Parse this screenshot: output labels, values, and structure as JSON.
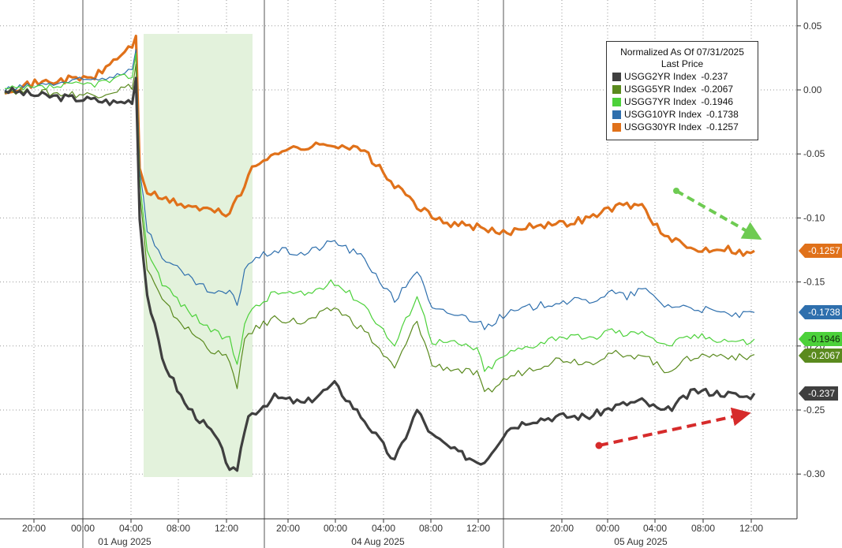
{
  "chart_data": {
    "type": "line",
    "title": "Normalized As Of 07/31/2025",
    "subtitle": "Last Price",
    "ylim": [
      -0.34,
      0.055
    ],
    "y_ticks": [
      "0.05",
      "0.00",
      "-0.05",
      "-0.10",
      "-0.15",
      "-0.20",
      "-0.25",
      "-0.30"
    ],
    "x_ticks": [
      "20:00",
      "00:00",
      "04:00",
      "08:00",
      "12:00",
      "20:00",
      "00:00",
      "04:00",
      "08:00",
      "12:00",
      "20:00",
      "00:00",
      "04:00",
      "08:00",
      "12:00"
    ],
    "date_labels": [
      "01 Aug 2025",
      "04 Aug 2025",
      "05 Aug 2025"
    ],
    "grid": true,
    "legend_placement": "top-right",
    "shaded_region": "01 Aug 2025 05:00 to 14:00",
    "annotations": [
      {
        "type": "arrow",
        "color": "#6ecb52",
        "direction": "down-right",
        "style": "dashed"
      },
      {
        "type": "arrow",
        "color": "#d62b2b",
        "direction": "up-right",
        "style": "dashed"
      }
    ],
    "x_index": [
      0,
      8,
      16,
      24,
      30,
      34,
      35,
      36,
      38,
      42,
      48,
      56,
      60,
      62,
      64,
      65,
      72,
      80,
      88,
      96,
      104,
      110,
      114,
      120,
      126,
      128,
      134,
      140,
      148,
      156,
      162,
      166,
      170,
      176,
      184,
      192,
      198,
      200
    ],
    "series": [
      {
        "name": "USGG2YR Index",
        "last": "-0.237",
        "color": "#3f3f3f",
        "values": [
          0.0,
          -0.004,
          -0.006,
          -0.008,
          -0.01,
          -0.008,
          0.01,
          -0.1,
          -0.16,
          -0.21,
          -0.245,
          -0.27,
          -0.295,
          -0.3,
          -0.265,
          -0.255,
          -0.24,
          -0.245,
          -0.23,
          -0.258,
          -0.29,
          -0.25,
          -0.27,
          -0.282,
          -0.29,
          -0.29,
          -0.265,
          -0.258,
          -0.255,
          -0.255,
          -0.248,
          -0.245,
          -0.243,
          -0.252,
          -0.235,
          -0.237,
          -0.24,
          -0.237
        ]
      },
      {
        "name": "USGG5YR Index",
        "last": "-0.2067",
        "color": "#5a8a1e",
        "values": [
          0.0,
          -0.002,
          -0.003,
          -0.004,
          0.0,
          0.003,
          0.02,
          -0.08,
          -0.14,
          -0.165,
          -0.185,
          -0.205,
          -0.21,
          -0.235,
          -0.195,
          -0.19,
          -0.178,
          -0.182,
          -0.17,
          -0.188,
          -0.218,
          -0.18,
          -0.215,
          -0.218,
          -0.222,
          -0.238,
          -0.225,
          -0.218,
          -0.21,
          -0.213,
          -0.205,
          -0.21,
          -0.205,
          -0.22,
          -0.208,
          -0.207,
          -0.21,
          -0.2067
        ]
      },
      {
        "name": "USGG7YR Index",
        "last": "-0.1946",
        "color": "#4cd13a",
        "values": [
          0.0,
          0.001,
          0.003,
          0.005,
          0.008,
          0.012,
          0.028,
          -0.07,
          -0.125,
          -0.15,
          -0.17,
          -0.19,
          -0.195,
          -0.215,
          -0.18,
          -0.175,
          -0.158,
          -0.16,
          -0.15,
          -0.168,
          -0.2,
          -0.16,
          -0.196,
          -0.198,
          -0.202,
          -0.22,
          -0.206,
          -0.2,
          -0.192,
          -0.195,
          -0.187,
          -0.192,
          -0.187,
          -0.2,
          -0.192,
          -0.195,
          -0.197,
          -0.1946
        ]
      },
      {
        "name": "USGG10YR Index",
        "last": "-0.1738",
        "color": "#2e6fad",
        "values": [
          0.0,
          0.003,
          0.006,
          0.008,
          0.012,
          0.018,
          0.03,
          -0.06,
          -0.11,
          -0.13,
          -0.145,
          -0.16,
          -0.158,
          -0.168,
          -0.14,
          -0.135,
          -0.125,
          -0.128,
          -0.118,
          -0.132,
          -0.165,
          -0.14,
          -0.172,
          -0.175,
          -0.18,
          -0.185,
          -0.175,
          -0.17,
          -0.165,
          -0.165,
          -0.158,
          -0.162,
          -0.155,
          -0.168,
          -0.17,
          -0.175,
          -0.176,
          -0.1738
        ]
      },
      {
        "name": "USGG30YR Index",
        "last": "-0.1257",
        "color": "#e0711a",
        "values": [
          0.0,
          0.005,
          0.008,
          0.01,
          0.025,
          0.035,
          0.04,
          -0.06,
          -0.08,
          -0.085,
          -0.09,
          -0.095,
          -0.097,
          -0.082,
          -0.078,
          -0.065,
          -0.048,
          -0.045,
          -0.042,
          -0.048,
          -0.075,
          -0.09,
          -0.1,
          -0.105,
          -0.107,
          -0.11,
          -0.112,
          -0.105,
          -0.105,
          -0.1,
          -0.092,
          -0.09,
          -0.09,
          -0.115,
          -0.125,
          -0.123,
          -0.128,
          -0.1257
        ]
      }
    ]
  }
}
